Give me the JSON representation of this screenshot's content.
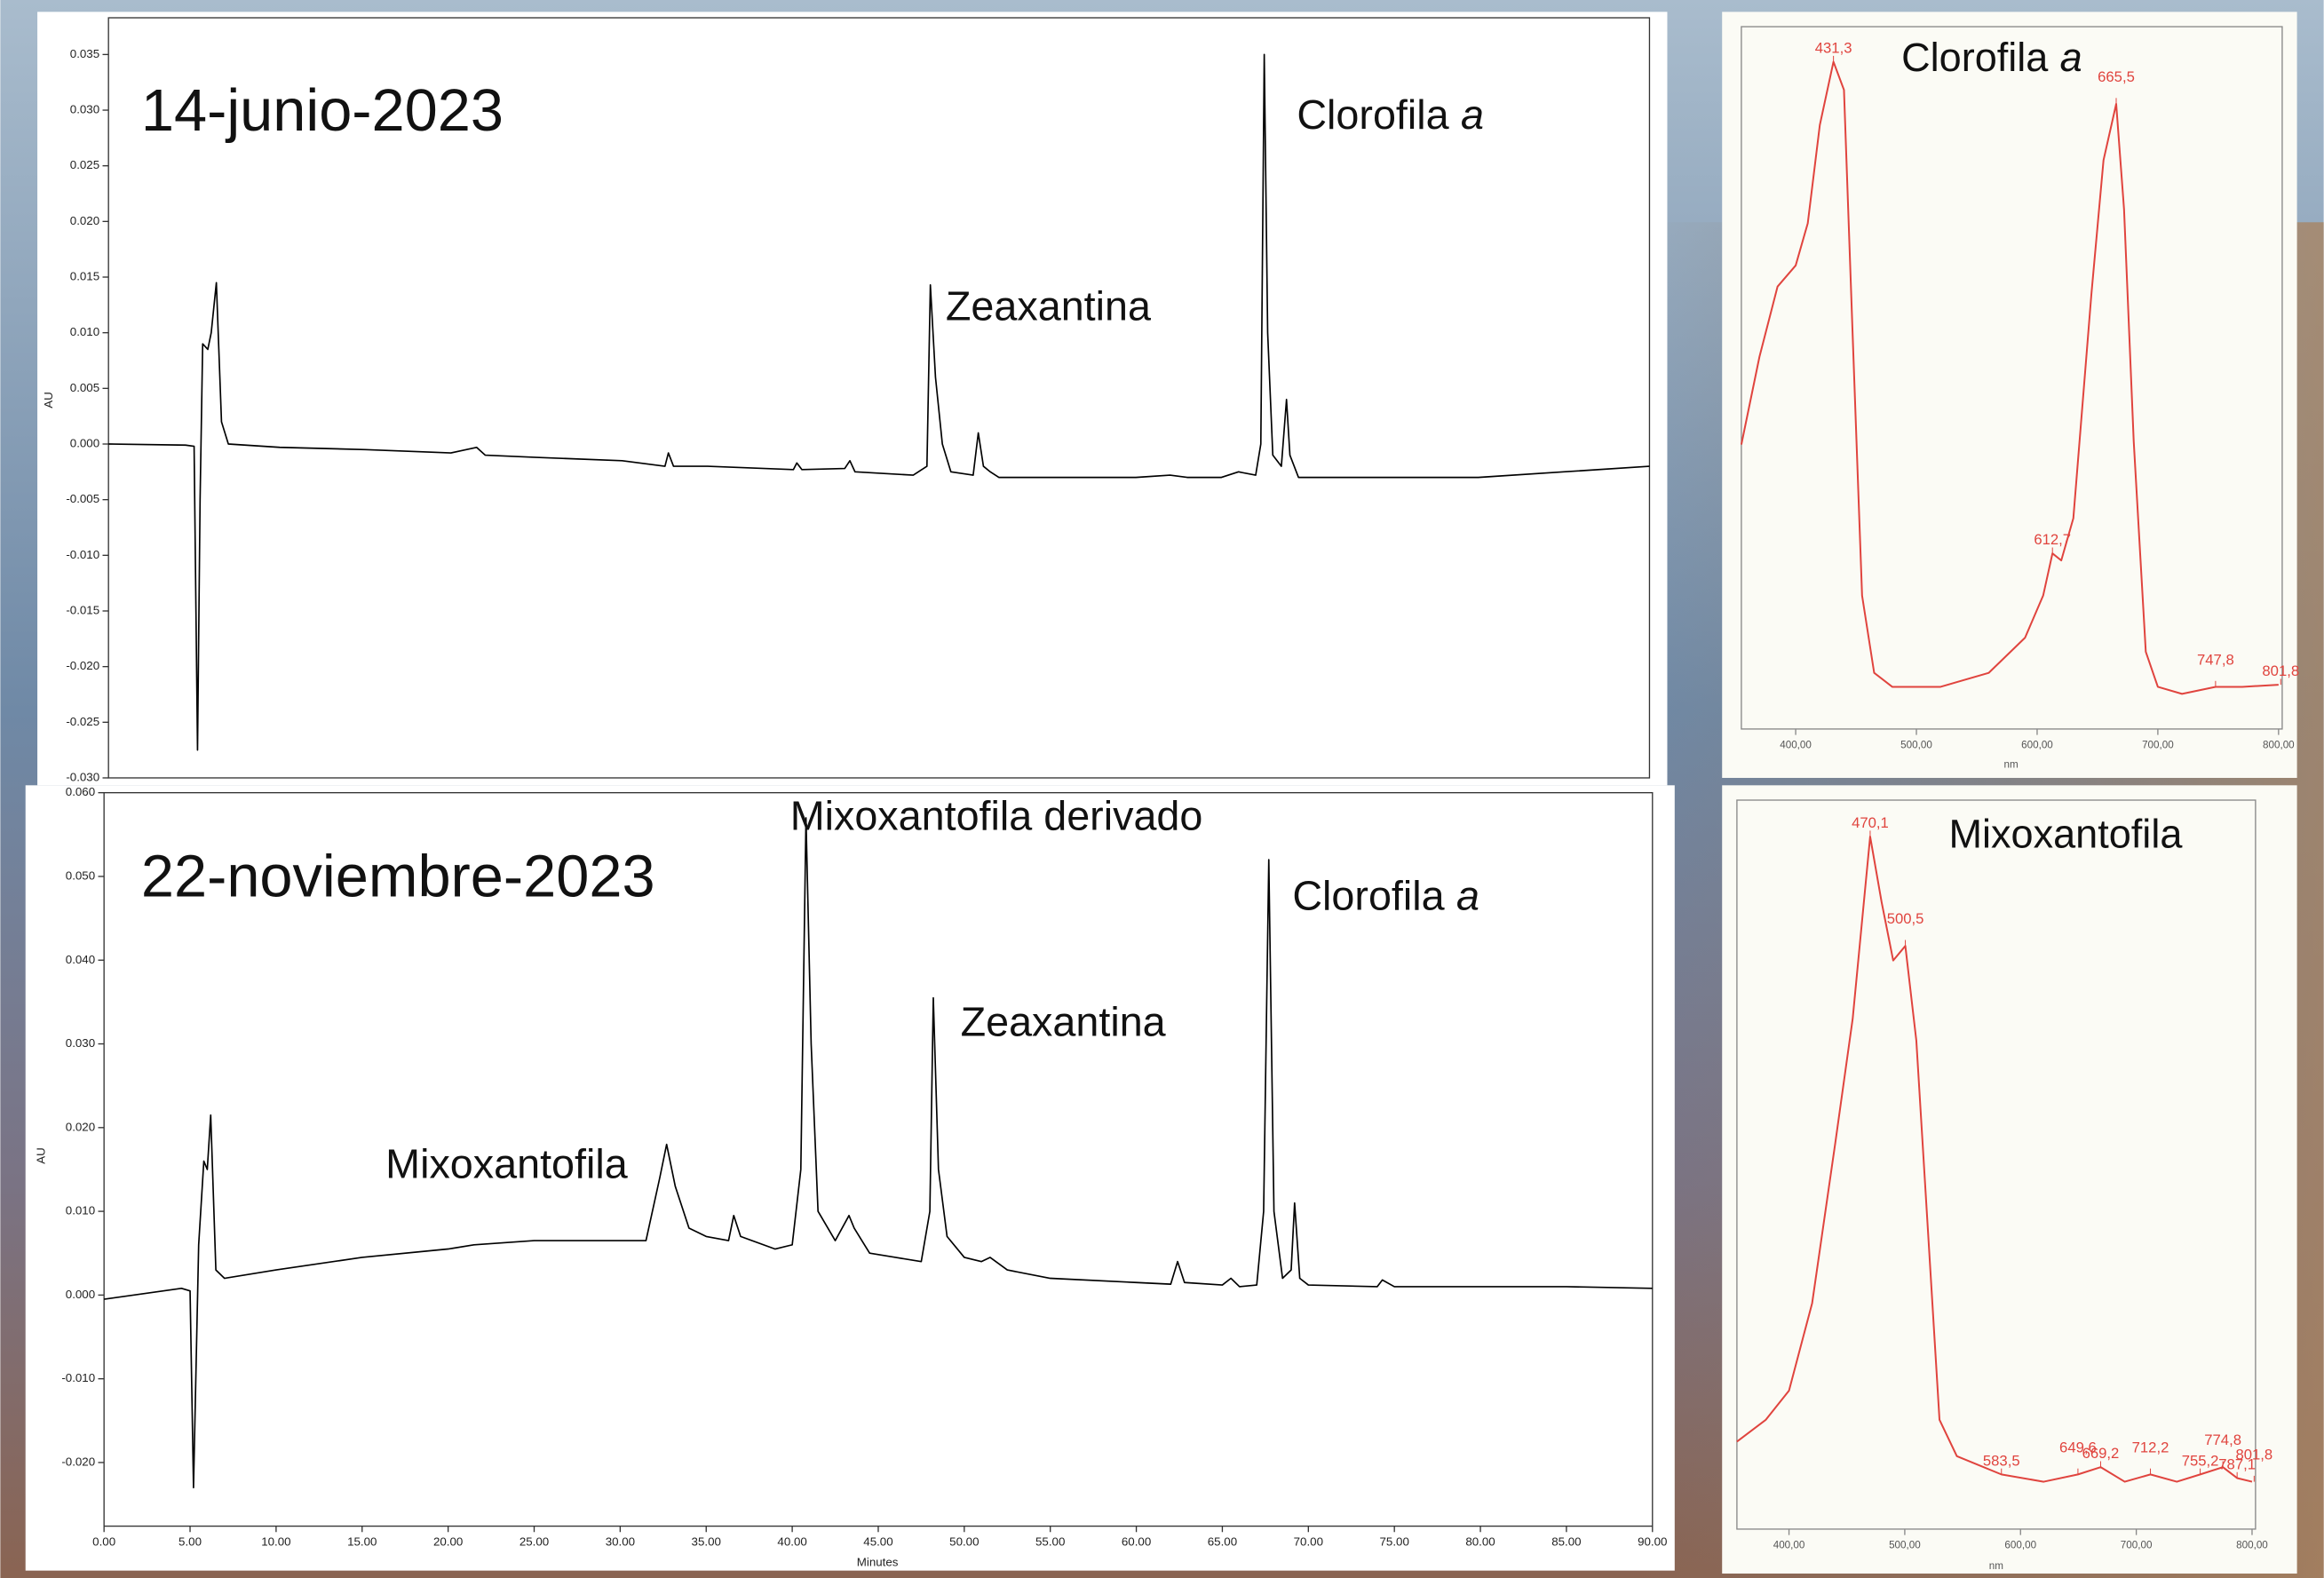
{
  "chart_data": [
    {
      "type": "line",
      "title": "14-junio-2023",
      "y_label": "AU",
      "color": "#000000",
      "xlim": [
        0,
        90
      ],
      "ylim": [
        -0.03,
        0.0383
      ],
      "yticks": [
        0.035,
        {
          "value": 0.03,
          "label": "0.030"
        },
        0.025,
        {
          "value": 0.02,
          "label": "0.020"
        },
        0.015,
        {
          "value": 0.01,
          "label": "0.010"
        },
        0.005,
        {
          "value": 0,
          "label": "0.000"
        },
        -0.005,
        {
          "value": -0.01,
          "label": "-0.010"
        },
        -0.015,
        {
          "value": -0.02,
          "label": "-0.020"
        },
        -0.025,
        {
          "value": -0.03,
          "label": "-0.030"
        }
      ],
      "annotations": [
        {
          "text": "Zeaxantina"
        },
        {
          "text": "Clorofila",
          "emphasis": "a"
        }
      ],
      "x": [
        0,
        4.5,
        5.0,
        5.2,
        5.35,
        5.5,
        5.8,
        6.0,
        6.3,
        6.6,
        7,
        10,
        15,
        20,
        21.5,
        22,
        25,
        30,
        32.5,
        32.7,
        33,
        35,
        40,
        40.2,
        40.5,
        43,
        43.3,
        43.6,
        47,
        47.8,
        48.0,
        48.3,
        48.7,
        49.2,
        50.5,
        50.8,
        51.1,
        51.5,
        52,
        55,
        60,
        62,
        63,
        65,
        66,
        67,
        67.3,
        67.5,
        67.7,
        68,
        68.5,
        68.8,
        69.0,
        69.5,
        72,
        75,
        80,
        85,
        90
      ],
      "values": [
        0,
        -0.0001,
        -0.0002,
        -0.0275,
        -0.005,
        0.009,
        0.0085,
        0.01,
        0.0145,
        0.002,
        0,
        -0.0003,
        -0.0005,
        -0.0008,
        -0.0003,
        -0.001,
        -0.0012,
        -0.0015,
        -0.002,
        -0.0008,
        -0.002,
        -0.002,
        -0.0023,
        -0.0017,
        -0.0023,
        -0.0022,
        -0.0015,
        -0.0025,
        -0.0028,
        -0.002,
        0.0143,
        0.006,
        0,
        -0.0025,
        -0.0028,
        0.001,
        -0.002,
        -0.0025,
        -0.003,
        -0.003,
        -0.003,
        -0.0028,
        -0.003,
        -0.003,
        -0.0025,
        -0.0028,
        0,
        0.035,
        0.01,
        -0.001,
        -0.002,
        0.004,
        -0.001,
        -0.003,
        -0.003,
        -0.003,
        -0.003,
        -0.0025,
        -0.002
      ]
    },
    {
      "type": "line",
      "title": "22-noviembre-2023",
      "y_label": "AU",
      "x_label": "Minutes",
      "color": "#000000",
      "xlim": [
        0,
        90
      ],
      "ylim": [
        -0.0276,
        0.06
      ],
      "xticks": [
        {
          "value": 0,
          "label": "0.00"
        },
        {
          "value": 5,
          "label": "5.00"
        },
        {
          "value": 10,
          "label": "10.00"
        },
        {
          "value": 15,
          "label": "15.00"
        },
        {
          "value": 20,
          "label": "20.00"
        },
        {
          "value": 25,
          "label": "25.00"
        },
        {
          "value": 30,
          "label": "30.00"
        },
        {
          "value": 35,
          "label": "35.00"
        },
        {
          "value": 40,
          "label": "40.00"
        },
        {
          "value": 45,
          "label": "45.00"
        },
        {
          "value": 50,
          "label": "50.00"
        },
        {
          "value": 55,
          "label": "55.00"
        },
        {
          "value": 60,
          "label": "60.00"
        },
        {
          "value": 65,
          "label": "65.00"
        },
        {
          "value": 70,
          "label": "70.00"
        },
        {
          "value": 75,
          "label": "75.00"
        },
        {
          "value": 80,
          "label": "80.00"
        },
        {
          "value": 85,
          "label": "85.00"
        },
        {
          "value": 90,
          "label": "90.00"
        }
      ],
      "yticks": [
        {
          "value": 0.06,
          "label": "0.060"
        },
        {
          "value": 0.05,
          "label": "0.050"
        },
        {
          "value": 0.04,
          "label": "0.040"
        },
        {
          "value": 0.03,
          "label": "0.030"
        },
        {
          "value": 0.02,
          "label": "0.020"
        },
        {
          "value": 0.01,
          "label": "0.010"
        },
        {
          "value": 0,
          "label": "0.000"
        },
        {
          "value": -0.01,
          "label": "-0.010"
        },
        {
          "value": -0.02,
          "label": "-0.020"
        }
      ],
      "annotations": [
        {
          "text": "Mixoxantofila"
        },
        {
          "text": "Mixoxantofila derivado"
        },
        {
          "text": "Zeaxantina"
        },
        {
          "text": "Clorofila",
          "emphasis": "a"
        }
      ],
      "x": [
        0,
        4.5,
        5.0,
        5.2,
        5.5,
        5.8,
        6.0,
        6.2,
        6.5,
        7,
        10,
        15,
        20,
        21.5,
        25,
        30,
        31.5,
        32.3,
        32.7,
        33.2,
        34,
        35,
        36.3,
        36.6,
        37,
        39,
        40,
        40.5,
        40.8,
        41.1,
        41.5,
        42.5,
        43.3,
        43.6,
        44.5,
        46,
        47.5,
        48.0,
        48.2,
        48.5,
        49,
        50,
        51,
        51.5,
        52.5,
        55,
        60,
        62,
        62.4,
        62.8,
        65,
        65.5,
        66,
        67,
        67.4,
        67.7,
        68,
        68.5,
        69,
        69.2,
        69.5,
        70,
        74,
        74.3,
        75,
        80,
        85,
        90
      ],
      "values": [
        -0.0005,
        0.0008,
        0.0005,
        -0.023,
        0.006,
        0.016,
        0.015,
        0.0215,
        0.003,
        0.002,
        0.003,
        0.0045,
        0.0055,
        0.006,
        0.0065,
        0.0065,
        0.0065,
        0.014,
        0.018,
        0.013,
        0.008,
        0.007,
        0.0065,
        0.0095,
        0.007,
        0.0055,
        0.006,
        0.015,
        0.057,
        0.03,
        0.01,
        0.0065,
        0.0095,
        0.008,
        0.005,
        0.0045,
        0.004,
        0.01,
        0.0355,
        0.015,
        0.007,
        0.0045,
        0.004,
        0.0045,
        0.003,
        0.002,
        0.0015,
        0.0013,
        0.004,
        0.0015,
        0.0012,
        0.002,
        0.001,
        0.0012,
        0.01,
        0.052,
        0.01,
        0.002,
        0.003,
        0.011,
        0.002,
        0.0012,
        0.001,
        0.0018,
        0.001,
        0.001,
        0.001,
        0.0008
      ]
    },
    {
      "type": "spectrum",
      "title": "Clorofila",
      "title_emphasis": "a",
      "x_label": "nm",
      "color": "#e0443e",
      "xlim": [
        355,
        803
      ],
      "ylim": [
        0,
        1
      ],
      "xticks": [
        {
          "value": 400,
          "label": "400,00"
        },
        {
          "value": 500,
          "label": "500,00"
        },
        {
          "value": 600,
          "label": "600,00"
        },
        {
          "value": 700,
          "label": "700,00"
        },
        {
          "value": 800,
          "label": "800,00"
        }
      ],
      "peak_labels": [
        {
          "value": 431.3,
          "label": "431,3"
        },
        {
          "value": 665.5,
          "label": "665,5"
        },
        {
          "value": 612.7,
          "label": "612,7"
        },
        {
          "value": 747.8,
          "label": "747,8"
        },
        {
          "value": 801.8,
          "label": "801,8"
        }
      ],
      "x": [
        355,
        370,
        385,
        400,
        410,
        420,
        431.3,
        440,
        447,
        455,
        465,
        480,
        520,
        560,
        590,
        605,
        612.7,
        620,
        630,
        645,
        655,
        665.5,
        672,
        680,
        690,
        700,
        720,
        747.8,
        770,
        800
      ],
      "values": [
        0.405,
        0.53,
        0.63,
        0.66,
        0.72,
        0.86,
        0.95,
        0.91,
        0.57,
        0.19,
        0.08,
        0.06,
        0.06,
        0.08,
        0.13,
        0.19,
        0.25,
        0.24,
        0.3,
        0.62,
        0.81,
        0.89,
        0.74,
        0.41,
        0.11,
        0.06,
        0.05,
        0.06,
        0.06,
        0.063
      ]
    },
    {
      "type": "spectrum",
      "title": "Mixoxantofila",
      "x_label": "nm",
      "color": "#e0443e",
      "xlim": [
        355,
        803
      ],
      "ylim": [
        0,
        1
      ],
      "xticks": [
        {
          "value": 400,
          "label": "400,00"
        },
        {
          "value": 500,
          "label": "500,00"
        },
        {
          "value": 600,
          "label": "600,00"
        },
        {
          "value": 700,
          "label": "700,00"
        },
        {
          "value": 800,
          "label": "800,00"
        }
      ],
      "peak_labels": [
        {
          "value": 470.1,
          "label": "470,1"
        },
        {
          "value": 500.5,
          "label": "500,5"
        },
        {
          "value": 583.5,
          "label": "583,5"
        },
        {
          "value": 649.6,
          "label": "649,6"
        },
        {
          "value": 669.2,
          "label": "669,2"
        },
        {
          "value": 712.2,
          "label": "712,2"
        },
        {
          "value": 755.2,
          "label": "755,2"
        },
        {
          "value": 801.8,
          "label": "801,8"
        },
        {
          "value": 787.1,
          "label": "787,1"
        },
        {
          "value": 774.8,
          "label": "774,8"
        }
      ],
      "x": [
        355,
        380,
        400,
        420,
        440,
        455,
        470.1,
        480,
        490,
        500.5,
        510,
        520,
        530,
        545,
        583.5,
        620,
        649.6,
        669.2,
        690,
        712.2,
        735,
        755.2,
        774.8,
        787.1,
        800
      ],
      "values": [
        0.12,
        0.15,
        0.19,
        0.31,
        0.53,
        0.7,
        0.95,
        0.86,
        0.78,
        0.8,
        0.67,
        0.41,
        0.15,
        0.1,
        0.075,
        0.065,
        0.075,
        0.085,
        0.065,
        0.075,
        0.065,
        0.075,
        0.085,
        0.07,
        0.065
      ]
    }
  ]
}
